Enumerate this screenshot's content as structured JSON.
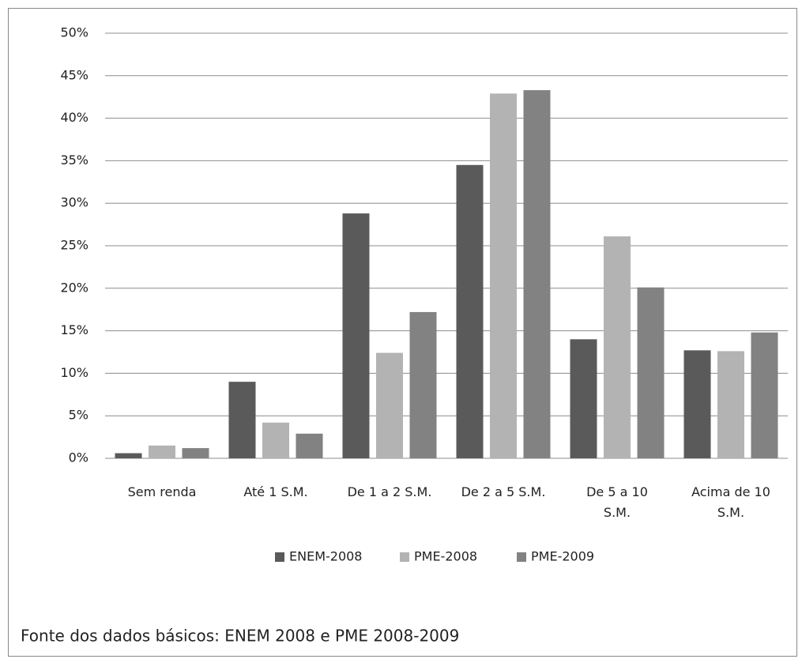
{
  "chart_data": {
    "type": "bar",
    "categories": [
      "Sem renda",
      "Até 1 S.M.",
      "De 1 a 2 S.M.",
      "De 2 a 5 S.M.",
      "De 5 a 10\nS.M.",
      "Acima de 10\nS.M."
    ],
    "series": [
      {
        "name": "ENEM-2008",
        "color": "#5a5a5a",
        "values": [
          0.6,
          9.0,
          28.8,
          34.5,
          14.0,
          12.7
        ]
      },
      {
        "name": "PME-2008",
        "color": "#b3b3b3",
        "values": [
          1.5,
          4.2,
          12.4,
          42.9,
          26.1,
          12.6
        ]
      },
      {
        "name": "PME-2009",
        "color": "#828282",
        "values": [
          1.2,
          2.9,
          17.2,
          43.3,
          20.1,
          14.8
        ]
      }
    ],
    "ylim": [
      0,
      50
    ],
    "yticks": [
      {
        "value": 0,
        "label": "0%"
      },
      {
        "value": 5,
        "label": "5%"
      },
      {
        "value": 10,
        "label": "10%"
      },
      {
        "value": 15,
        "label": "15%"
      },
      {
        "value": 20,
        "label": "20%"
      },
      {
        "value": 25,
        "label": "25%"
      },
      {
        "value": 30,
        "label": "30%"
      },
      {
        "value": 35,
        "label": "35%"
      },
      {
        "value": 40,
        "label": "40%"
      },
      {
        "value": 45,
        "label": "45%"
      },
      {
        "value": 50,
        "label": "50%"
      }
    ],
    "grid": true,
    "legend": "bottom",
    "note": "Fonte dos dados básicos: ENEM 2008  e PME 2008-2009"
  }
}
